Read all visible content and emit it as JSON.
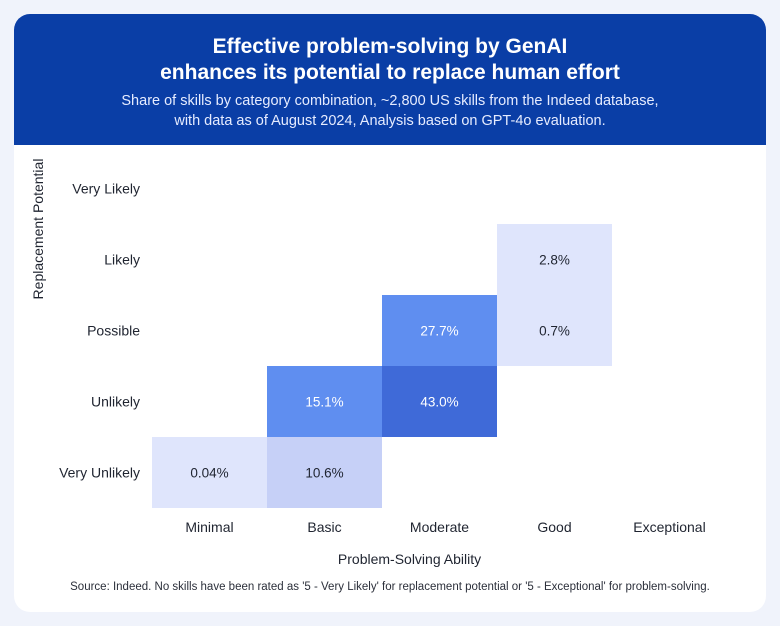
{
  "header": {
    "title_line1": "Effective problem-solving by GenAI",
    "title_line2": "enhances its potential to replace human effort",
    "subtitle_line1": "Share of skills by category combination, ~2,800 US skills from the Indeed database,",
    "subtitle_line2": "with data as of August 2024, Analysis based on GPT-4o evaluation."
  },
  "footer": {
    "source": "Source: Indeed. No skills have been rated as '5 - Very Likely' for replacement potential or '5 - Exceptional' for problem-solving."
  },
  "chart_data": {
    "type": "heatmap",
    "title": "Effective problem-solving by GenAI enhances its potential to replace human effort",
    "xlabel": "Problem-Solving Ability",
    "ylabel": "Replacement Potential",
    "x_categories": [
      "Minimal",
      "Basic",
      "Moderate",
      "Good",
      "Exceptional"
    ],
    "y_categories": [
      "Very Likely",
      "Likely",
      "Possible",
      "Unlikely",
      "Very Unlikely"
    ],
    "unit": "%",
    "cells": [
      {
        "x": "Good",
        "y": "Likely",
        "value": 2.8,
        "label": "2.8%"
      },
      {
        "x": "Moderate",
        "y": "Possible",
        "value": 27.7,
        "label": "27.7%"
      },
      {
        "x": "Good",
        "y": "Possible",
        "value": 0.7,
        "label": "0.7%"
      },
      {
        "x": "Basic",
        "y": "Unlikely",
        "value": 15.1,
        "label": "15.1%"
      },
      {
        "x": "Moderate",
        "y": "Unlikely",
        "value": 43.0,
        "label": "43.0%"
      },
      {
        "x": "Minimal",
        "y": "Very Unlikely",
        "value": 0.04,
        "label": "0.04%"
      },
      {
        "x": "Basic",
        "y": "Very Unlikely",
        "value": 10.6,
        "label": "10.6%"
      }
    ],
    "colors": {
      "light": "#dfe5fc",
      "mid_light": "#c6d0f7",
      "mid": "#5f8ef0",
      "dark": "#3f6ad8",
      "light_text": "#1f2430",
      "dark_text": "#ffffff"
    }
  }
}
